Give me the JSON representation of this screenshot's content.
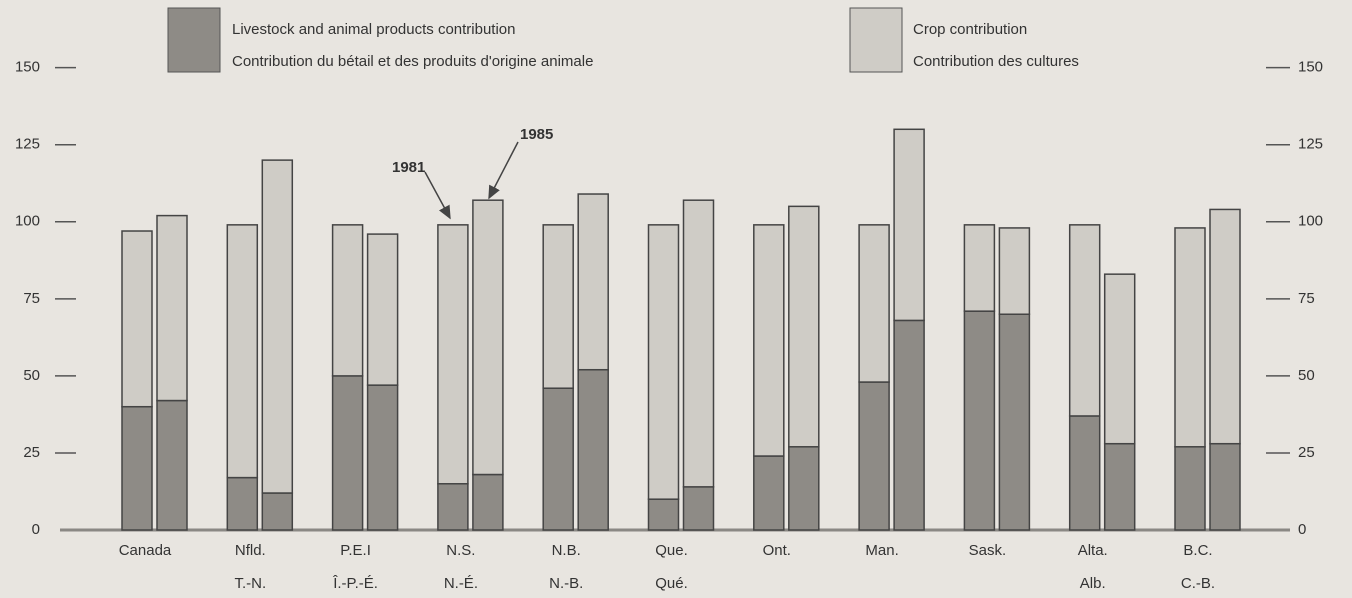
{
  "chart_data": {
    "type": "stacked-bar",
    "categories": [
      [
        "Canada"
      ],
      [
        "Nfld.",
        "T.-N."
      ],
      [
        "P.E.I",
        "Î.-P.-É."
      ],
      [
        "N.S.",
        "N.-É."
      ],
      [
        "N.B.",
        "N.-B."
      ],
      [
        "Que.",
        "Qué."
      ],
      [
        "Ont."
      ],
      [
        "Man."
      ],
      [
        "Sask."
      ],
      [
        "Alta.",
        "Alb."
      ],
      [
        "B.C.",
        "C.-B."
      ]
    ],
    "groups": [
      "1981",
      "1985"
    ],
    "series": [
      {
        "name": "Livestock and animal products contribution",
        "name_fr": "Contribution du bétail et des produits d'origine animale",
        "color": "#8e8b86",
        "values": [
          [
            40,
            42
          ],
          [
            17,
            12
          ],
          [
            50,
            47
          ],
          [
            15,
            18
          ],
          [
            46,
            52
          ],
          [
            10,
            14
          ],
          [
            24,
            27
          ],
          [
            48,
            68
          ],
          [
            71,
            70
          ],
          [
            37,
            28
          ],
          [
            27,
            28
          ]
        ]
      },
      {
        "name": "Crop contribution",
        "name_fr": "Contribution des cultures",
        "color": "#cfccc6",
        "values": [
          [
            57,
            60
          ],
          [
            82,
            108
          ],
          [
            49,
            49
          ],
          [
            84,
            89
          ],
          [
            53,
            57
          ],
          [
            89,
            93
          ],
          [
            75,
            78
          ],
          [
            51,
            62
          ],
          [
            28,
            28
          ],
          [
            62,
            55
          ],
          [
            71,
            76
          ]
        ]
      }
    ],
    "ylim": [
      0,
      170
    ],
    "yticks": [
      0,
      25,
      50,
      75,
      100,
      125,
      150
    ]
  }
}
